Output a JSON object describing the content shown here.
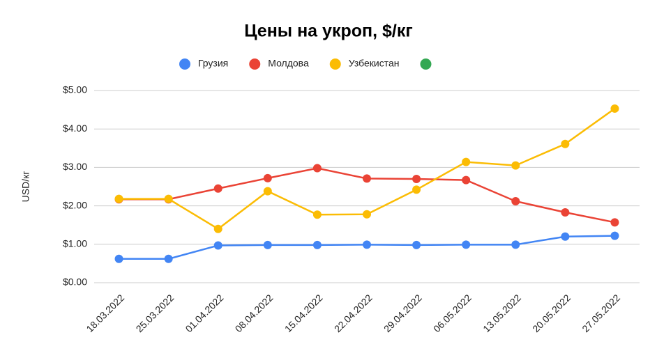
{
  "chart_data": {
    "type": "line",
    "title": "Цены на укроп, $/кг",
    "y_label": "USD/кг",
    "categories": [
      "18.03.2022",
      "25.03.2022",
      "01.04.2022",
      "08.04.2022",
      "15.04.2022",
      "22.04.2022",
      "29.04.2022",
      "06.05.2022",
      "13.05.2022",
      "20.05.2022",
      "27.05.2022"
    ],
    "series": [
      {
        "name": "Грузия",
        "color": "#4285f4",
        "values": [
          0.62,
          0.62,
          0.97,
          0.98,
          0.98,
          0.99,
          0.98,
          0.99,
          0.99,
          1.2,
          1.22
        ]
      },
      {
        "name": "Молдова",
        "color": "#ea4335",
        "values": [
          2.17,
          2.17,
          2.45,
          2.72,
          2.98,
          2.71,
          2.7,
          2.67,
          2.12,
          1.83,
          1.57
        ]
      },
      {
        "name": "Узбекистан",
        "color": "#fbbc04",
        "values": [
          2.18,
          2.18,
          1.4,
          2.38,
          1.77,
          1.78,
          2.42,
          3.14,
          3.05,
          3.61,
          4.53
        ]
      },
      {
        "color": "#34a853",
        "values": [
          null,
          null,
          null,
          null,
          null,
          null,
          null,
          null,
          null,
          null,
          null
        ]
      }
    ],
    "ylim": [
      0,
      5
    ],
    "yticks": [
      {
        "value": 0,
        "label": "$0.00"
      },
      {
        "value": 1,
        "label": "$1.00"
      },
      {
        "value": 2,
        "label": "$2.00"
      },
      {
        "value": 3,
        "label": "$3.00"
      },
      {
        "value": 4,
        "label": "$4.00"
      },
      {
        "value": 5,
        "label": "$5.00"
      }
    ],
    "grid": true,
    "legend": "top"
  }
}
